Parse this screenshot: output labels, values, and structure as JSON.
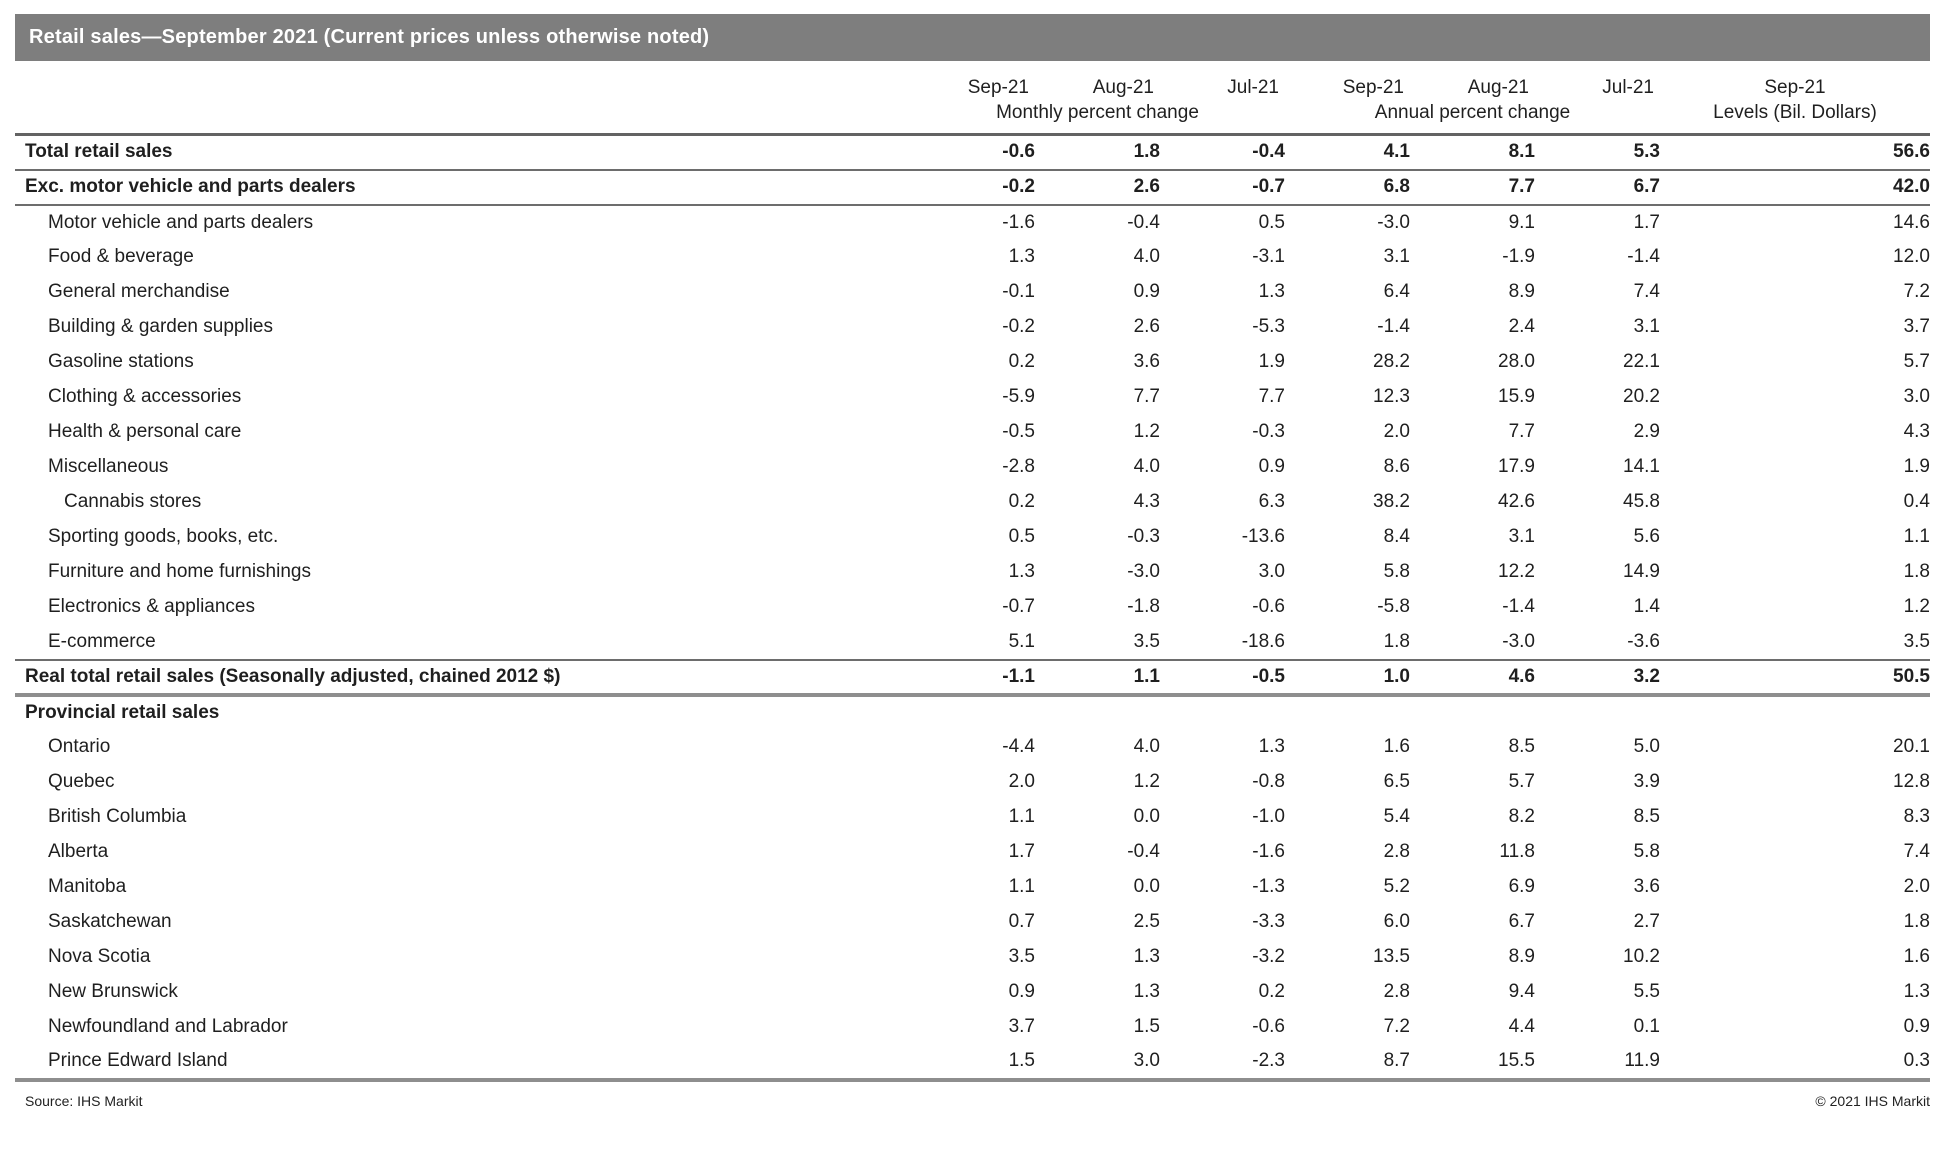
{
  "title": "Retail sales—September 2021 (Current prices unless otherwise noted)",
  "footer": {
    "source": "Source: IHS Markit",
    "copyright": "© 2021 IHS Markit"
  },
  "colors": {
    "title_bar_bg": "#7e7e7e",
    "title_text": "#ffffff",
    "body_text": "#1f1f1f",
    "header_rule": "#636363",
    "rule_thin": "#6d6d6d",
    "rule_thick": "#8e8e8e"
  },
  "chart_data": {
    "type": "table",
    "title": "Retail sales—September 2021 (Current prices unless otherwise noted)",
    "header": {
      "months": [
        "Sep-21",
        "Aug-21",
        "Jul-21",
        "Sep-21",
        "Aug-21",
        "Jul-21",
        "Sep-21"
      ],
      "groups": [
        {
          "label": "Monthly percent change",
          "span": 3
        },
        {
          "label": "Annual percent change",
          "span": 3
        },
        {
          "label": "Levels (Bil. Dollars)",
          "span": 1
        }
      ]
    },
    "rows": [
      {
        "label": "Total retail sales",
        "indent": 0,
        "bold": true,
        "rule_below": "thin",
        "values": [
          "-0.6",
          "1.8",
          "-0.4",
          "4.1",
          "8.1",
          "5.3",
          "56.6"
        ]
      },
      {
        "label": "Exc. motor vehicle and parts dealers",
        "indent": 0,
        "bold": true,
        "rule_below": "thin",
        "values": [
          "-0.2",
          "2.6",
          "-0.7",
          "6.8",
          "7.7",
          "6.7",
          "42.0"
        ]
      },
      {
        "label": "Motor vehicle and parts dealers",
        "indent": 1,
        "bold": false,
        "rule_below": "none",
        "values": [
          "-1.6",
          "-0.4",
          "0.5",
          "-3.0",
          "9.1",
          "1.7",
          "14.6"
        ]
      },
      {
        "label": "Food & beverage",
        "indent": 1,
        "bold": false,
        "rule_below": "none",
        "values": [
          "1.3",
          "4.0",
          "-3.1",
          "3.1",
          "-1.9",
          "-1.4",
          "12.0"
        ]
      },
      {
        "label": "General merchandise",
        "indent": 1,
        "bold": false,
        "rule_below": "none",
        "values": [
          "-0.1",
          "0.9",
          "1.3",
          "6.4",
          "8.9",
          "7.4",
          "7.2"
        ]
      },
      {
        "label": "Building & garden supplies",
        "indent": 1,
        "bold": false,
        "rule_below": "none",
        "values": [
          "-0.2",
          "2.6",
          "-5.3",
          "-1.4",
          "2.4",
          "3.1",
          "3.7"
        ]
      },
      {
        "label": "Gasoline stations",
        "indent": 1,
        "bold": false,
        "rule_below": "none",
        "values": [
          "0.2",
          "3.6",
          "1.9",
          "28.2",
          "28.0",
          "22.1",
          "5.7"
        ]
      },
      {
        "label": "Clothing & accessories",
        "indent": 1,
        "bold": false,
        "rule_below": "none",
        "values": [
          "-5.9",
          "7.7",
          "7.7",
          "12.3",
          "15.9",
          "20.2",
          "3.0"
        ]
      },
      {
        "label": "Health & personal care",
        "indent": 1,
        "bold": false,
        "rule_below": "none",
        "values": [
          "-0.5",
          "1.2",
          "-0.3",
          "2.0",
          "7.7",
          "2.9",
          "4.3"
        ]
      },
      {
        "label": "Miscellaneous",
        "indent": 1,
        "bold": false,
        "rule_below": "none",
        "values": [
          "-2.8",
          "4.0",
          "0.9",
          "8.6",
          "17.9",
          "14.1",
          "1.9"
        ]
      },
      {
        "label": "Cannabis stores",
        "indent": 2,
        "bold": false,
        "rule_below": "none",
        "values": [
          "0.2",
          "4.3",
          "6.3",
          "38.2",
          "42.6",
          "45.8",
          "0.4"
        ]
      },
      {
        "label": "Sporting goods, books, etc.",
        "indent": 1,
        "bold": false,
        "rule_below": "none",
        "values": [
          "0.5",
          "-0.3",
          "-13.6",
          "8.4",
          "3.1",
          "5.6",
          "1.1"
        ]
      },
      {
        "label": "Furniture and home furnishings",
        "indent": 1,
        "bold": false,
        "rule_below": "none",
        "values": [
          "1.3",
          "-3.0",
          "3.0",
          "5.8",
          "12.2",
          "14.9",
          "1.8"
        ]
      },
      {
        "label": "Electronics & appliances",
        "indent": 1,
        "bold": false,
        "rule_below": "none",
        "values": [
          "-0.7",
          "-1.8",
          "-0.6",
          "-5.8",
          "-1.4",
          "1.4",
          "1.2"
        ]
      },
      {
        "label": "E-commerce",
        "indent": 1,
        "bold": false,
        "rule_below": "thin",
        "values": [
          "5.1",
          "3.5",
          "-18.6",
          "1.8",
          "-3.0",
          "-3.6",
          "3.5"
        ]
      },
      {
        "label": "Real total retail sales (Seasonally adjusted, chained 2012 $)",
        "indent": 0,
        "bold": true,
        "rule_below": "thick",
        "values": [
          "-1.1",
          "1.1",
          "-0.5",
          "1.0",
          "4.6",
          "3.2",
          "50.5"
        ]
      },
      {
        "label": "Provincial retail sales",
        "indent": 0,
        "bold": true,
        "rule_below": "none",
        "values": []
      },
      {
        "label": "Ontario",
        "indent": 1,
        "bold": false,
        "rule_below": "none",
        "values": [
          "-4.4",
          "4.0",
          "1.3",
          "1.6",
          "8.5",
          "5.0",
          "20.1"
        ]
      },
      {
        "label": "Quebec",
        "indent": 1,
        "bold": false,
        "rule_below": "none",
        "values": [
          "2.0",
          "1.2",
          "-0.8",
          "6.5",
          "5.7",
          "3.9",
          "12.8"
        ]
      },
      {
        "label": "British Columbia",
        "indent": 1,
        "bold": false,
        "rule_below": "none",
        "values": [
          "1.1",
          "0.0",
          "-1.0",
          "5.4",
          "8.2",
          "8.5",
          "8.3"
        ]
      },
      {
        "label": "Alberta",
        "indent": 1,
        "bold": false,
        "rule_below": "none",
        "values": [
          "1.7",
          "-0.4",
          "-1.6",
          "2.8",
          "11.8",
          "5.8",
          "7.4"
        ]
      },
      {
        "label": "Manitoba",
        "indent": 1,
        "bold": false,
        "rule_below": "none",
        "values": [
          "1.1",
          "0.0",
          "-1.3",
          "5.2",
          "6.9",
          "3.6",
          "2.0"
        ]
      },
      {
        "label": "Saskatchewan",
        "indent": 1,
        "bold": false,
        "rule_below": "none",
        "values": [
          "0.7",
          "2.5",
          "-3.3",
          "6.0",
          "6.7",
          "2.7",
          "1.8"
        ]
      },
      {
        "label": "Nova Scotia",
        "indent": 1,
        "bold": false,
        "rule_below": "none",
        "values": [
          "3.5",
          "1.3",
          "-3.2",
          "13.5",
          "8.9",
          "10.2",
          "1.6"
        ]
      },
      {
        "label": "New Brunswick",
        "indent": 1,
        "bold": false,
        "rule_below": "none",
        "values": [
          "0.9",
          "1.3",
          "0.2",
          "2.8",
          "9.4",
          "5.5",
          "1.3"
        ]
      },
      {
        "label": "Newfoundland and Labrador",
        "indent": 1,
        "bold": false,
        "rule_below": "none",
        "values": [
          "3.7",
          "1.5",
          "-0.6",
          "7.2",
          "4.4",
          "0.1",
          "0.9"
        ]
      },
      {
        "label": "Prince Edward Island",
        "indent": 1,
        "bold": false,
        "rule_below": "thick",
        "values": [
          "1.5",
          "3.0",
          "-2.3",
          "8.7",
          "15.5",
          "11.9",
          "0.3"
        ]
      }
    ]
  }
}
